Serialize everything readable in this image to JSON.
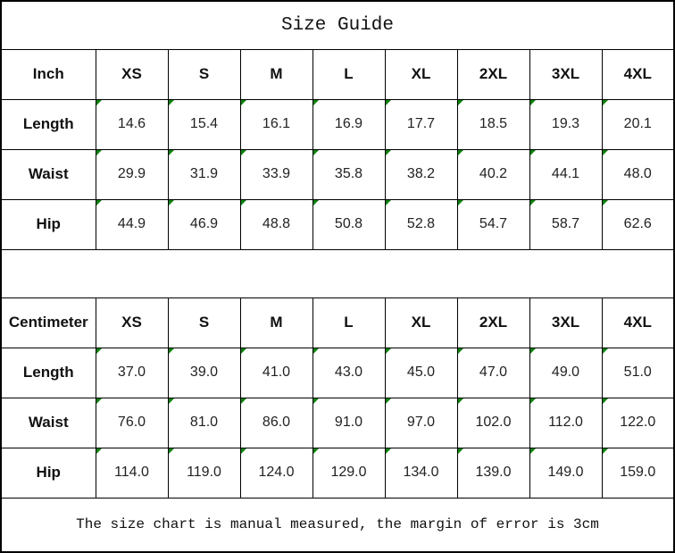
{
  "title": "Size Guide",
  "footer_note": "The size chart is manual measured, the margin of error is 3cm",
  "colors": {
    "flag_green": "#0b830b",
    "border": "#000000"
  },
  "tables": [
    {
      "unit_label": "Inch",
      "columns": [
        "XS",
        "S",
        "M",
        "L",
        "XL",
        "2XL",
        "3XL",
        "4XL"
      ],
      "rows": [
        {
          "label": "Length",
          "values": [
            "14.6",
            "15.4",
            "16.1",
            "16.9",
            "17.7",
            "18.5",
            "19.3",
            "20.1"
          ]
        },
        {
          "label": "Waist",
          "values": [
            "29.9",
            "31.9",
            "33.9",
            "35.8",
            "38.2",
            "40.2",
            "44.1",
            "48.0"
          ]
        },
        {
          "label": "Hip",
          "values": [
            "44.9",
            "46.9",
            "48.8",
            "50.8",
            "52.8",
            "54.7",
            "58.7",
            "62.6"
          ]
        }
      ]
    },
    {
      "unit_label": "Centimeter",
      "columns": [
        "XS",
        "S",
        "M",
        "L",
        "XL",
        "2XL",
        "3XL",
        "4XL"
      ],
      "rows": [
        {
          "label": "Length",
          "values": [
            "37.0",
            "39.0",
            "41.0",
            "43.0",
            "45.0",
            "47.0",
            "49.0",
            "51.0"
          ]
        },
        {
          "label": "Waist",
          "values": [
            "76.0",
            "81.0",
            "86.0",
            "91.0",
            "97.0",
            "102.0",
            "112.0",
            "122.0"
          ]
        },
        {
          "label": "Hip",
          "values": [
            "114.0",
            "119.0",
            "124.0",
            "129.0",
            "134.0",
            "139.0",
            "149.0",
            "159.0"
          ]
        }
      ]
    }
  ]
}
